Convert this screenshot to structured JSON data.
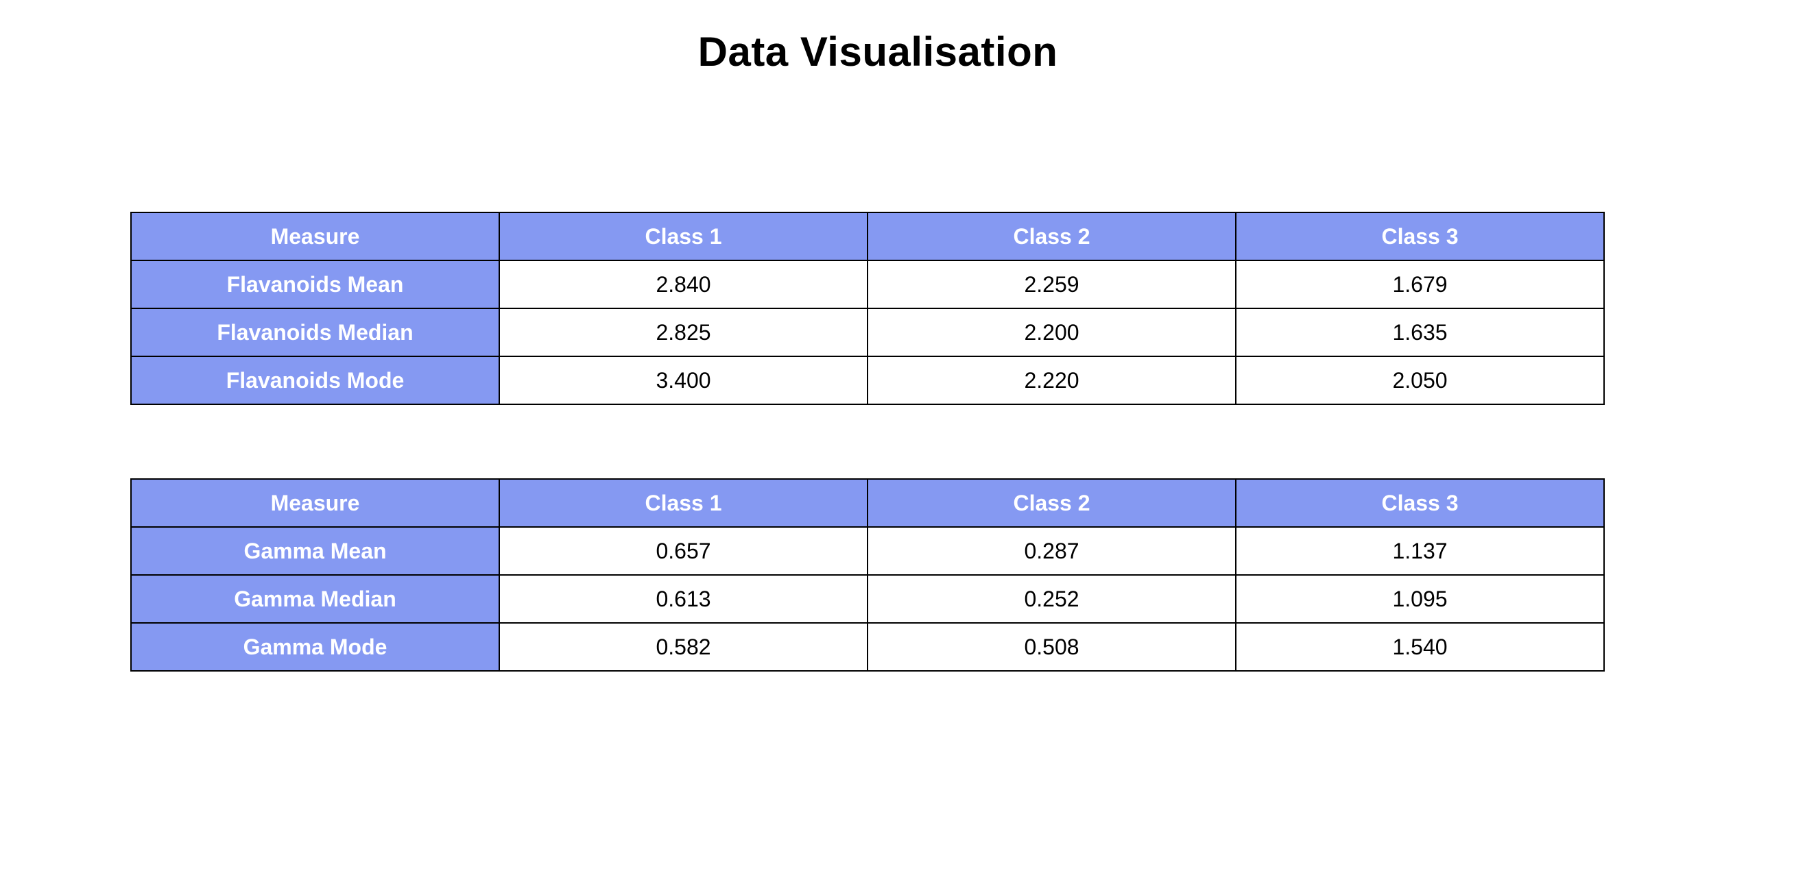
{
  "page": {
    "title": "Data Visualisation"
  },
  "colors": {
    "header_bg": "#8599f2",
    "header_text": "#ffffff",
    "border": "#000000"
  },
  "tables": [
    {
      "headers": [
        "Measure",
        "Class 1",
        "Class 2",
        "Class 3"
      ],
      "rows": [
        {
          "measure": "Flavanoids Mean",
          "values": [
            "2.840",
            "2.259",
            "1.679"
          ]
        },
        {
          "measure": "Flavanoids Median",
          "values": [
            "2.825",
            "2.200",
            "1.635"
          ]
        },
        {
          "measure": "Flavanoids Mode",
          "values": [
            "3.400",
            "2.220",
            "2.050"
          ]
        }
      ]
    },
    {
      "headers": [
        "Measure",
        "Class 1",
        "Class 2",
        "Class 3"
      ],
      "rows": [
        {
          "measure": "Gamma Mean",
          "values": [
            "0.657",
            "0.287",
            "1.137"
          ]
        },
        {
          "measure": "Gamma Median",
          "values": [
            "0.613",
            "0.252",
            "1.095"
          ]
        },
        {
          "measure": "Gamma Mode",
          "values": [
            "0.582",
            "0.508",
            "1.540"
          ]
        }
      ]
    }
  ]
}
